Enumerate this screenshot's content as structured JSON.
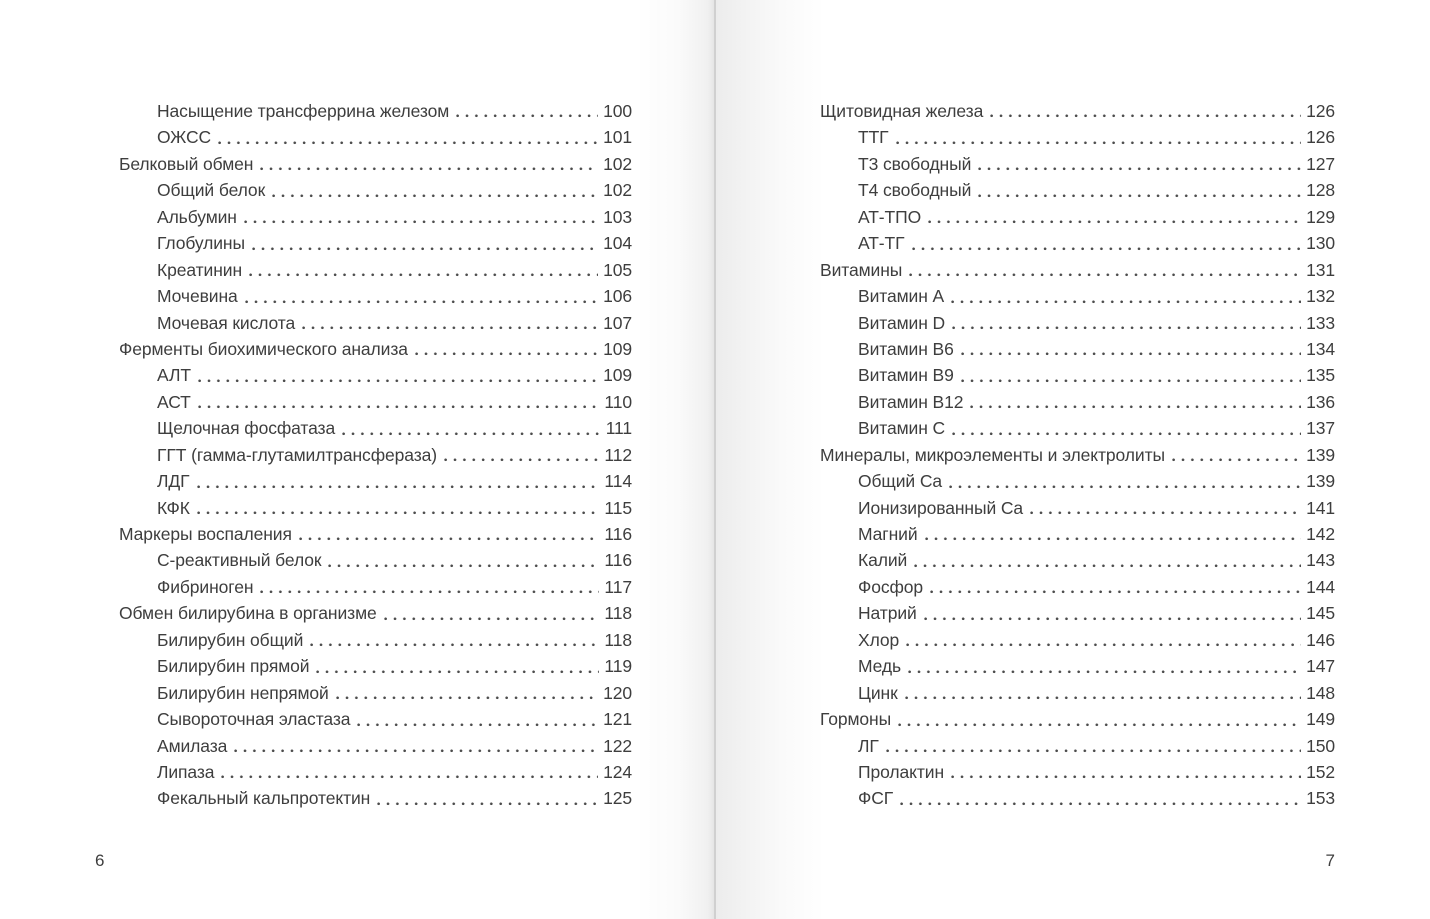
{
  "colors": {
    "text": "#3e3e3e",
    "dots": "#4c4c4c",
    "gutter_line": "#d0d0d0",
    "page_bg": "#ffffff"
  },
  "pages": [
    {
      "page_number": "6",
      "entries": [
        {
          "level": "sub",
          "label": "Насыщение трансферрина железом",
          "page": "100"
        },
        {
          "level": "sub",
          "label": "ОЖСС",
          "page": "101"
        },
        {
          "level": "top",
          "label": "Белковый обмен",
          "page": "102"
        },
        {
          "level": "sub",
          "label": "Общий белок",
          "page": "102"
        },
        {
          "level": "sub",
          "label": "Альбумин",
          "page": "103"
        },
        {
          "level": "sub",
          "label": "Глобулины",
          "page": "104"
        },
        {
          "level": "sub",
          "label": "Креатинин",
          "page": "105"
        },
        {
          "level": "sub",
          "label": "Мочевина",
          "page": "106"
        },
        {
          "level": "sub",
          "label": "Мочевая кислота",
          "page": "107"
        },
        {
          "level": "top",
          "label": "Ферменты биохимического анализа",
          "page": "109"
        },
        {
          "level": "sub",
          "label": "АЛТ",
          "page": "109"
        },
        {
          "level": "sub",
          "label": "АСТ",
          "page": "110"
        },
        {
          "level": "sub",
          "label": "Щелочная фосфатаза",
          "page": "111"
        },
        {
          "level": "sub",
          "label": "ГГТ (гамма-глутамилтрансфераза)",
          "page": "112"
        },
        {
          "level": "sub",
          "label": "ЛДГ",
          "page": "114"
        },
        {
          "level": "sub",
          "label": "КФК",
          "page": "115"
        },
        {
          "level": "top",
          "label": "Маркеры воспаления",
          "page": "116"
        },
        {
          "level": "sub",
          "label": "С-реактивный белок",
          "page": "116"
        },
        {
          "level": "sub",
          "label": "Фибриноген",
          "page": "117"
        },
        {
          "level": "top",
          "label": "Обмен билирубина в организме",
          "page": "118"
        },
        {
          "level": "sub",
          "label": "Билирубин общий",
          "page": "118"
        },
        {
          "level": "sub",
          "label": "Билирубин прямой",
          "page": "119"
        },
        {
          "level": "sub",
          "label": "Билирубин непрямой",
          "page": "120"
        },
        {
          "level": "sub",
          "label": "Сывороточная эластаза",
          "page": "121"
        },
        {
          "level": "sub",
          "label": "Амилаза",
          "page": "122"
        },
        {
          "level": "sub",
          "label": "Липаза",
          "page": "124"
        },
        {
          "level": "sub",
          "label": "Фекальный кальпротектин",
          "page": "125"
        }
      ]
    },
    {
      "page_number": "7",
      "entries": [
        {
          "level": "top",
          "label": "Щитовидная железа",
          "page": "126"
        },
        {
          "level": "sub",
          "label": "ТТГ",
          "page": "126"
        },
        {
          "level": "sub",
          "label": "Т3 свободный",
          "page": "127"
        },
        {
          "level": "sub",
          "label": "Т4 свободный",
          "page": "128"
        },
        {
          "level": "sub",
          "label": "АТ-ТПО",
          "page": "129"
        },
        {
          "level": "sub",
          "label": "АТ-ТГ",
          "page": "130"
        },
        {
          "level": "top",
          "label": "Витамины",
          "page": "131"
        },
        {
          "level": "sub",
          "label": "Витамин A",
          "page": "132"
        },
        {
          "level": "sub",
          "label": "Витамин D",
          "page": "133"
        },
        {
          "level": "sub",
          "label": "Витамин B6",
          "page": "134"
        },
        {
          "level": "sub",
          "label": "Витамин B9",
          "page": "135"
        },
        {
          "level": "sub",
          "label": "Витамин B12",
          "page": "136"
        },
        {
          "level": "sub",
          "label": "Витамин C",
          "page": "137"
        },
        {
          "level": "top",
          "label": "Минералы, микроэлементы и электролиты",
          "page": "139"
        },
        {
          "level": "sub",
          "label": "Общий Ca",
          "page": "139"
        },
        {
          "level": "sub",
          "label": "Ионизированный Ca",
          "page": "141"
        },
        {
          "level": "sub",
          "label": "Магний",
          "page": "142"
        },
        {
          "level": "sub",
          "label": "Калий",
          "page": "143"
        },
        {
          "level": "sub",
          "label": "Фосфор",
          "page": "144"
        },
        {
          "level": "sub",
          "label": "Натрий",
          "page": "145"
        },
        {
          "level": "sub",
          "label": "Хлор",
          "page": "146"
        },
        {
          "level": "sub",
          "label": "Медь",
          "page": "147"
        },
        {
          "level": "sub",
          "label": "Цинк",
          "page": "148"
        },
        {
          "level": "top",
          "label": "Гормоны",
          "page": "149"
        },
        {
          "level": "sub",
          "label": "ЛГ",
          "page": "150"
        },
        {
          "level": "sub",
          "label": "Пролактин",
          "page": "152"
        },
        {
          "level": "sub",
          "label": "ФСГ",
          "page": "153"
        }
      ]
    }
  ]
}
